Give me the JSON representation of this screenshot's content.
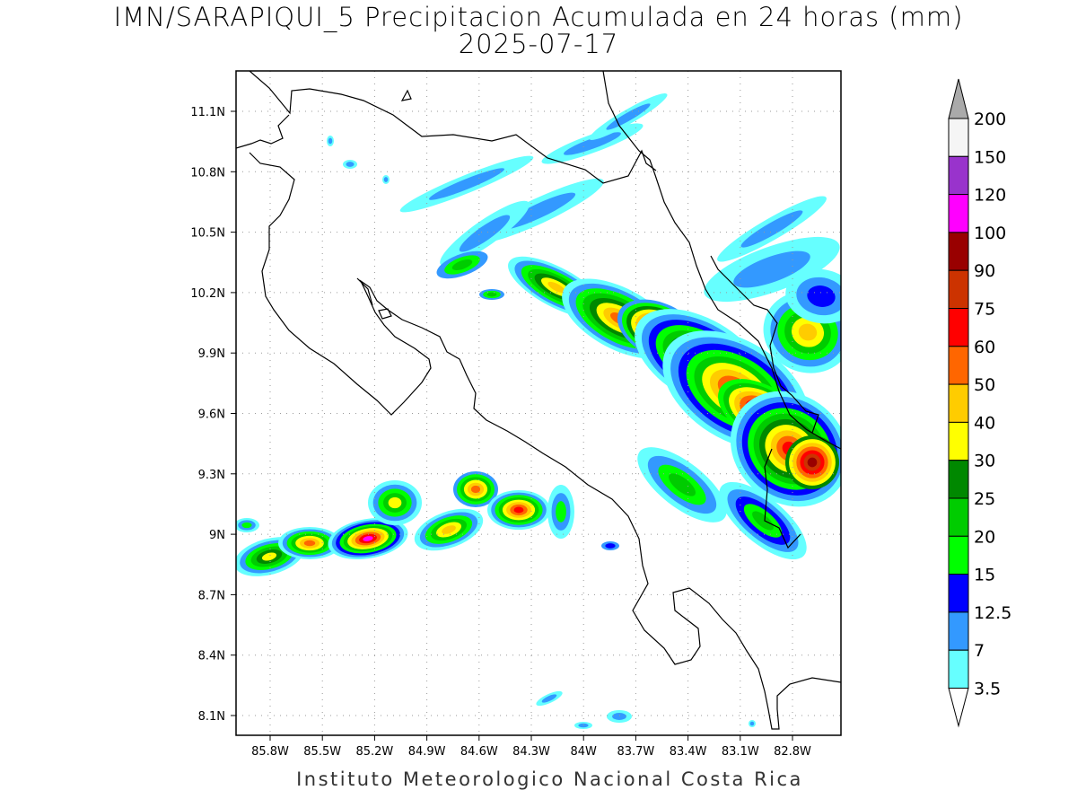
{
  "title": "IMN/SARAPIQUI_5 Precipitacion Acumulada en 24 horas (mm)",
  "subtitle": "2025-07-17",
  "footer": "Instituto Meteorologico Nacional Costa Rica",
  "lat_labels": [
    "11.1N",
    "10.8N",
    "10.5N",
    "10.2N",
    "9.9N",
    "9.6N",
    "9.3N",
    "9N",
    "8.7N",
    "8.4N",
    "8.1N"
  ],
  "lon_labels": [
    "85.8W",
    "85.5W",
    "85.2W",
    "84.9W",
    "84.6W",
    "84.3W",
    "84W",
    "83.7W",
    "83.4W",
    "83.1W",
    "82.8W"
  ],
  "colorbar": {
    "labels": [
      "3.5",
      "7",
      "12.5",
      "15",
      "20",
      "25",
      "30",
      "40",
      "50",
      "60",
      "75",
      "90",
      "100",
      "120",
      "150",
      "200"
    ],
    "colors": [
      "#66ffff",
      "#3399ff",
      "#0000ff",
      "#00ff00",
      "#00cc00",
      "#008800",
      "#ffff00",
      "#ffcc00",
      "#ff6600",
      "#ff0000",
      "#cc3300",
      "#990000",
      "#ff00ff",
      "#9933cc",
      "#f5f5f5"
    ],
    "over_color": "#aaaaaa",
    "under_color": "#ffffff"
  },
  "map_colors": {
    "land_outline": "#000000",
    "grid": "#999999"
  }
}
